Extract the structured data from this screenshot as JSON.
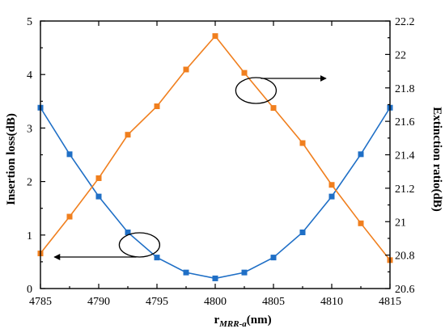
{
  "chart_data": {
    "type": "line",
    "xlabel_main": "r",
    "xlabel_sub": "MRR-a",
    "xlabel_unit": "(nm)",
    "ylabel_left": "Insertion loss(dB)",
    "ylabel_right": "Extinction ratio(dB)",
    "xlim": [
      4785,
      4815
    ],
    "ylim_left": [
      0,
      5
    ],
    "ylim_right": [
      20.6,
      22.2
    ],
    "x_ticks": [
      "4785",
      "4790",
      "4795",
      "4800",
      "4805",
      "4810",
      "4815"
    ],
    "y_left_ticks": [
      "0",
      "1",
      "2",
      "3",
      "4",
      "5"
    ],
    "y_right_ticks": [
      "20.6",
      "20.8",
      "21",
      "21.2",
      "21.4",
      "21.6",
      "21.8",
      "22",
      "22.2"
    ],
    "series": [
      {
        "axis": "left",
        "color": "#1f6fc6",
        "marker": "square",
        "points": [
          [
            4785,
            3.38
          ],
          [
            4787.5,
            2.51
          ],
          [
            4790,
            1.72
          ],
          [
            4792.5,
            1.05
          ],
          [
            4795,
            0.58
          ],
          [
            4797.5,
            0.3
          ],
          [
            4800,
            0.19
          ],
          [
            4802.5,
            0.3
          ],
          [
            4805,
            0.58
          ],
          [
            4807.5,
            1.05
          ],
          [
            4810,
            1.72
          ],
          [
            4812.5,
            2.51
          ],
          [
            4815,
            3.38
          ]
        ]
      },
      {
        "axis": "right",
        "color": "#f07f1e",
        "marker": "square",
        "points": [
          [
            4785,
            20.81
          ],
          [
            4787.5,
            21.03
          ],
          [
            4790,
            21.26
          ],
          [
            4792.5,
            21.52
          ],
          [
            4795,
            21.69
          ],
          [
            4797.5,
            21.91
          ],
          [
            4800,
            22.11
          ],
          [
            4802.5,
            21.89
          ],
          [
            4805,
            21.68
          ],
          [
            4807.5,
            21.47
          ],
          [
            4810,
            21.22
          ],
          [
            4812.5,
            20.99
          ],
          [
            4815,
            20.77
          ]
        ]
      }
    ],
    "annotations": [
      {
        "type": "ellipse-arrow",
        "points_to": "right-axis",
        "cx": 4803.5,
        "cy_left": 3.75
      },
      {
        "type": "ellipse-arrow",
        "points_to": "left-axis",
        "cx": 4793.5,
        "cy_left": 0.85
      }
    ]
  }
}
